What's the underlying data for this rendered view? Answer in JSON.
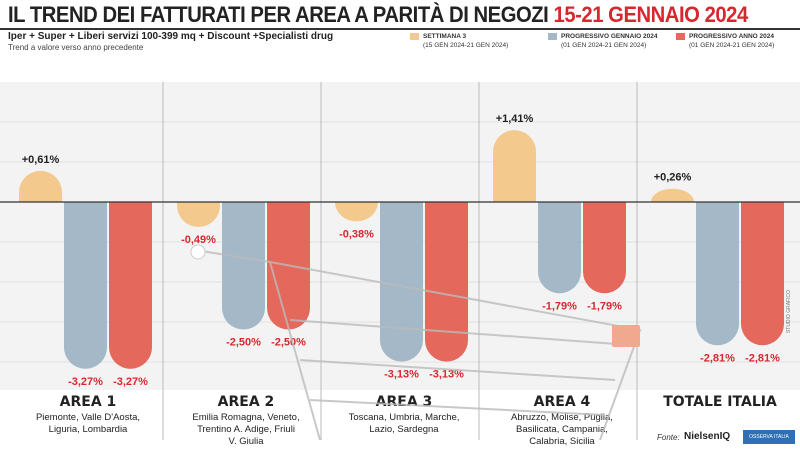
{
  "header": {
    "title": "IL TREND DEI FATTURATI PER AREA A PARITÀ DI NEGOZI",
    "title_highlight": "15-21 GENNAIO 2024",
    "subtitle": "Iper + Super + Liberi servizi 100-399 mq + Discount +Specialisti drug",
    "note": "Trend a valore verso anno precedente"
  },
  "footer": {
    "source_label": "Fonte:",
    "logo1": "NielsenIQ",
    "logo2": "OSSERVA ITALIA",
    "credit": "STUDIO GRAFICO"
  },
  "chart_data": {
    "type": "bar",
    "title": "IL TREND DEI FATTURATI PER AREA A PARITÀ DI NEGOZI 15-21 GENNAIO 2024",
    "categories": [
      "AREA 1",
      "AREA 2",
      "AREA 3",
      "AREA 4",
      "TOTALE ITALIA"
    ],
    "category_details": [
      "Piemonte, Valle D'Aosta, Liguria, Lombardia",
      "Emilia Romagna, Veneto, Trentino A. Adige, Friuli V. Giulia",
      "Toscana, Umbria, Marche, Lazio, Sardegna",
      "Abruzzo, Molise, Puglia, Basilicata, Campania, Calabria, Sicilia",
      ""
    ],
    "series": [
      {
        "name": "SETTIMANA 3",
        "period": "(15 GEN 2024-21 GEN 2024)",
        "color": "#f3c98d",
        "values": [
          0.61,
          -0.49,
          -0.38,
          1.41,
          0.26
        ],
        "labels": [
          "+0,61%",
          "-0,49%",
          "-0,38%",
          "+1,41%",
          "+0,26%"
        ]
      },
      {
        "name": "PROGRESSIVO GENNAIO 2024",
        "period": "(01 GEN 2024-21 GEN 2024)",
        "color": "#a4b8c7",
        "values": [
          -3.27,
          -2.5,
          -3.13,
          -1.79,
          -2.81
        ],
        "labels": [
          "-3,27%",
          "-2,50%",
          "-3,13%",
          "-1,79%",
          "-2,81%"
        ]
      },
      {
        "name": "PROGRESSIVO ANNO 2024",
        "period": "(01 GEN 2024-21 GEN 2024)",
        "color": "#e4685b",
        "values": [
          -3.27,
          -2.5,
          -3.13,
          -1.79,
          -2.81
        ],
        "labels": [
          "-3,27%",
          "-2,50%",
          "-3,13%",
          "-1,79%",
          "-2,81%"
        ]
      }
    ],
    "ylabel": "",
    "xlabel": "",
    "ylim": [
      -3.4,
      2.3
    ],
    "legend": "top-right"
  }
}
